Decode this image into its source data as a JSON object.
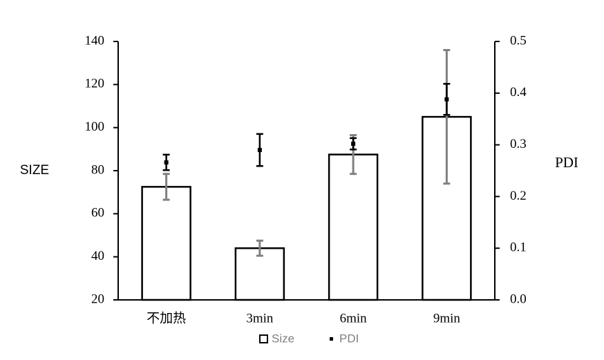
{
  "chart_data": {
    "type": "bar",
    "categories": [
      "不加热",
      "3min",
      "6min",
      "9min"
    ],
    "y_label": "SIZE",
    "y2_label": "PDI",
    "ylim": [
      20,
      140
    ],
    "yticks": [
      20,
      40,
      60,
      80,
      100,
      120,
      140
    ],
    "y2lim": [
      0,
      0.5
    ],
    "y2ticks": [
      {
        "value": 0,
        "label": "0.0"
      },
      0.1,
      0.2,
      0.3,
      0.4,
      0.5
    ],
    "series": [
      {
        "name": "Size",
        "type": "bar",
        "color": "#ffffff",
        "error_color": "#808080",
        "values": [
          72.5,
          44,
          87.5,
          105
        ],
        "error": [
          6,
          3.5,
          9,
          31
        ]
      },
      {
        "name": "PDI",
        "type": "scatter",
        "axis": "y2",
        "color": "#000000",
        "error_color": "#000000",
        "values": [
          0.266,
          0.29,
          0.302,
          0.388
        ],
        "error": [
          0.015,
          0.031,
          0.011,
          0.03
        ]
      }
    ]
  }
}
